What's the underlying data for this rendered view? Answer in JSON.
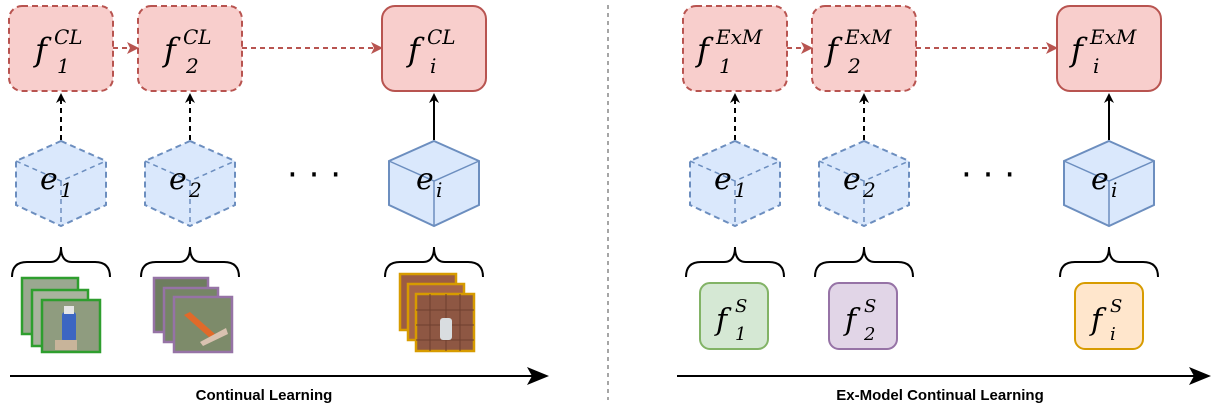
{
  "left_panel": {
    "title": "Continual Learning",
    "models": [
      {
        "base": "f",
        "sub": "1",
        "sup": "CL"
      },
      {
        "base": "f",
        "sub": "2",
        "sup": "CL"
      },
      {
        "base": "f",
        "sub": "i",
        "sup": "CL"
      }
    ],
    "experiences": [
      {
        "base": "e",
        "sub": "1"
      },
      {
        "base": "e",
        "sub": "2"
      },
      {
        "base": "e",
        "sub": "i"
      }
    ],
    "ellipsis": "· · ·"
  },
  "right_panel": {
    "title": "Ex-Model Continual Learning",
    "models": [
      {
        "base": "f",
        "sub": "1",
        "sup": "ExM"
      },
      {
        "base": "f",
        "sub": "2",
        "sup": "ExM"
      },
      {
        "base": "f",
        "sub": "i",
        "sup": "ExM"
      }
    ],
    "experiences": [
      {
        "base": "e",
        "sub": "1"
      },
      {
        "base": "e",
        "sub": "2"
      },
      {
        "base": "e",
        "sub": "i"
      }
    ],
    "source_models": [
      {
        "base": "f",
        "sub": "1",
        "sup": "S"
      },
      {
        "base": "f",
        "sub": "2",
        "sup": "S"
      },
      {
        "base": "f",
        "sub": "i",
        "sup": "S"
      }
    ],
    "ellipsis": "· · ·"
  },
  "colors": {
    "model_fill": "#f8cecc",
    "model_stroke": "#b85450",
    "cube_fill": "#dae8fc",
    "cube_stroke": "#6c8ebf",
    "source_green_fill": "#d5e8d4",
    "source_green_stroke": "#82b366",
    "source_purple_fill": "#e1d5e7",
    "source_purple_stroke": "#9673a6",
    "source_orange_fill": "#ffe6cc",
    "source_orange_stroke": "#d79b00",
    "divider": "#888888"
  }
}
